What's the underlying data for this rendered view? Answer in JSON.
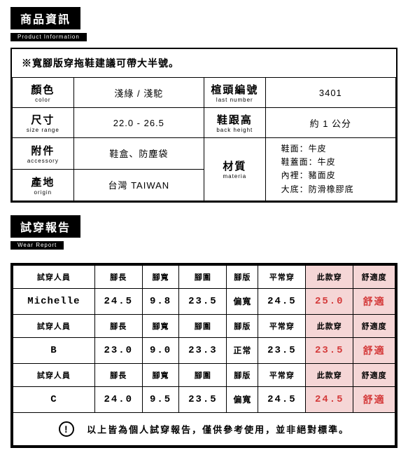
{
  "productInfo": {
    "header": {
      "zh": "商品資訊",
      "en": "Product Information"
    },
    "note": "※寬腳版穿拖鞋建議可帶大半號。",
    "rows": {
      "color": {
        "label_zh": "顏色",
        "label_en": "color",
        "value": "淺綠 / 淺駝"
      },
      "lastNumber": {
        "label_zh": "楦頭編號",
        "label_en": "last number",
        "value": "3401"
      },
      "size": {
        "label_zh": "尺寸",
        "label_en": "size range",
        "value": "22.0 - 26.5"
      },
      "heel": {
        "label_zh": "鞋跟高",
        "label_en": "back height",
        "value": "約 1 公分"
      },
      "accessory": {
        "label_zh": "附件",
        "label_en": "accessory",
        "value": "鞋盒、防塵袋"
      },
      "material": {
        "label_zh": "材質",
        "label_en": "materia",
        "lines": [
          "鞋面：牛皮",
          "鞋蓋面：牛皮",
          "內裡：豬面皮",
          "大底：防滑橡膠底"
        ]
      },
      "origin": {
        "label_zh": "產地",
        "label_en": "origin",
        "value": "台灣 TAIWAN"
      }
    }
  },
  "wearReport": {
    "header": {
      "zh": "試穿報告",
      "en": "Wear Report"
    },
    "columns": [
      "試穿人員",
      "腳長",
      "腳寬",
      "腳圍",
      "腳版",
      "平常穿",
      "此款穿",
      "舒適度"
    ],
    "rows": [
      {
        "name": "Michelle",
        "footLength": "24.5",
        "footWidth": "9.8",
        "footCirc": "23.5",
        "footType": "偏寬",
        "usualSize": "24.5",
        "thisSize": "25.0",
        "comfort": "舒適"
      },
      {
        "name": "B",
        "footLength": "23.0",
        "footWidth": "9.0",
        "footCirc": "23.3",
        "footType": "正常",
        "usualSize": "23.5",
        "thisSize": "23.5",
        "comfort": "舒適"
      },
      {
        "name": "C",
        "footLength": "24.0",
        "footWidth": "9.5",
        "footCirc": "23.5",
        "footType": "偏寬",
        "usualSize": "24.5",
        "thisSize": "24.5",
        "comfort": "舒適"
      }
    ],
    "footer": "以上皆為個人試穿報告，僅供參考使用，並非絕對標準。"
  },
  "colors": {
    "highlight_bg": "#f5d6d6",
    "highlight_text": "#d43a3a",
    "border": "#000000",
    "background": "#ffffff"
  }
}
